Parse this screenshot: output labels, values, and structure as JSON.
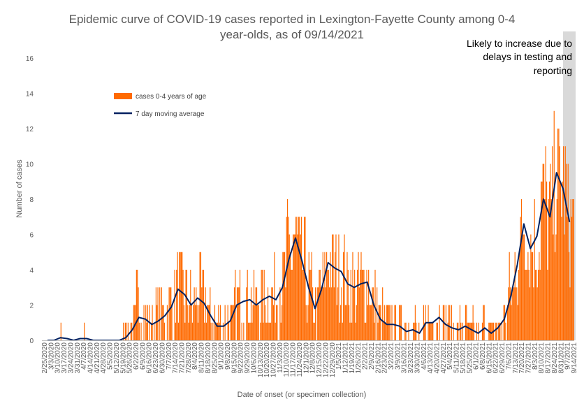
{
  "chart_data": {
    "type": "bar",
    "title_line1": "Epidemic curve of COVID-19 cases reported in Lexington-Fayette County among 0-4",
    "title_line2": "year-olds, as of 09/14/2021",
    "xlabel": "Date of onset (or specimen collection)",
    "ylabel": "Number of cases",
    "ylim": [
      0,
      16
    ],
    "y_ticks": [
      0,
      2,
      4,
      6,
      8,
      10,
      12,
      14,
      16
    ],
    "x_start": "2020-02-25",
    "x_end": "2021-09-14",
    "x_tick_labels": [
      "2/25/2020",
      "3/3/2020",
      "3/10/2020",
      "3/17/2020",
      "3/24/2020",
      "3/31/2020",
      "4/7/2020",
      "4/14/2020",
      "4/21/2020",
      "4/28/2020",
      "5/5/2020",
      "5/12/2020",
      "5/19/2020",
      "5/26/2020",
      "6/2/2020",
      "6/9/2020",
      "6/16/2020",
      "6/23/2020",
      "6/30/2020",
      "7/7/2020",
      "7/14/2020",
      "7/21/2020",
      "7/28/2020",
      "8/4/2020",
      "8/11/2020",
      "8/18/2020",
      "8/25/2020",
      "9/1/2020",
      "9/8/2020",
      "9/15/2020",
      "9/22/2020",
      "9/29/2020",
      "10/6/2020",
      "10/13/2020",
      "10/20/2020",
      "10/27/2020",
      "11/3/2020",
      "11/10/2020",
      "11/17/2020",
      "11/24/2020",
      "12/1/2020",
      "12/8/2020",
      "12/15/2020",
      "12/22/2020",
      "12/29/2020",
      "1/5/2021",
      "1/12/2021",
      "1/19/2021",
      "1/26/2021",
      "2/2/2021",
      "2/9/2021",
      "2/16/2021",
      "2/23/2021",
      "3/2/2021",
      "3/9/2021",
      "3/16/2021",
      "3/23/2021",
      "3/30/2021",
      "4/6/2021",
      "4/13/2021",
      "4/20/2021",
      "4/27/2021",
      "5/4/2021",
      "5/11/2021",
      "5/18/2021",
      "5/25/2021",
      "6/1/2021",
      "6/8/2021",
      "6/15/2021",
      "6/22/2021",
      "6/29/2021",
      "7/6/2021",
      "7/13/2021",
      "7/20/2021",
      "7/27/2021",
      "8/3/2021",
      "8/10/2021",
      "8/17/2021",
      "8/24/2021",
      "8/31/2021",
      "9/7/2021",
      "9/14/2021"
    ],
    "grid": false,
    "legend_position": "top-left",
    "series": [
      {
        "name": "cases 0-4 years of age",
        "type": "bar",
        "color": "#FF6A00",
        "weekly_values": [
          0,
          0,
          0.3,
          0.1,
          0,
          0.1,
          0.1,
          0,
          0,
          0,
          0,
          0,
          0.3,
          1.0,
          2.0,
          1.3,
          1.0,
          1.3,
          1.4,
          2.0,
          3.0,
          2.6,
          2.0,
          2.4,
          2.0,
          1.4,
          1.0,
          0.9,
          1.1,
          2.1,
          2.2,
          2.3,
          2.0,
          2.3,
          2.5,
          2.4,
          3.2,
          4.8,
          5.6,
          4.4,
          3.2,
          1.8,
          3.0,
          4.4,
          4.0,
          4.0,
          3.2,
          3.0,
          3.2,
          3.3,
          2.0,
          1.2,
          0.9,
          1.0,
          0.8,
          0.6,
          0.7,
          0.4,
          1.0,
          1.0,
          1.1,
          0.9,
          0.7,
          0.6,
          0.8,
          0.5,
          0.4,
          0.7,
          0.5,
          0.7,
          1.3,
          2.6,
          4.5,
          6.6,
          5.2,
          5.6,
          8.0,
          7.2,
          9.2,
          8.8,
          6.8
        ]
      },
      {
        "name": "7 day moving average",
        "type": "line",
        "color": "#002060",
        "weekly_values": [
          0,
          0,
          0.15,
          0.1,
          0,
          0.1,
          0.1,
          0,
          0,
          0,
          0,
          0,
          0.15,
          0.6,
          1.3,
          1.2,
          0.9,
          1.1,
          1.4,
          1.9,
          2.9,
          2.6,
          2.0,
          2.4,
          2.1,
          1.4,
          0.8,
          0.8,
          1.1,
          2.0,
          2.2,
          2.3,
          2.0,
          2.3,
          2.5,
          2.3,
          3.0,
          4.6,
          5.8,
          4.5,
          3.0,
          1.8,
          2.9,
          4.4,
          4.1,
          3.9,
          3.2,
          3.0,
          3.2,
          3.3,
          2.0,
          1.2,
          0.9,
          0.9,
          0.8,
          0.5,
          0.6,
          0.4,
          1.0,
          1.0,
          1.3,
          0.9,
          0.7,
          0.6,
          0.8,
          0.6,
          0.4,
          0.7,
          0.4,
          0.7,
          1.2,
          2.5,
          4.3,
          6.6,
          5.2,
          5.9,
          8.0,
          7.0,
          9.5,
          8.6,
          6.7
        ]
      }
    ],
    "shaded_region": {
      "from": "2021-09-02",
      "to": "2021-09-14",
      "color": "#D9D9D9",
      "note_lines": [
        "Likely to increase due to",
        "delays in testing and",
        "reporting"
      ]
    }
  }
}
